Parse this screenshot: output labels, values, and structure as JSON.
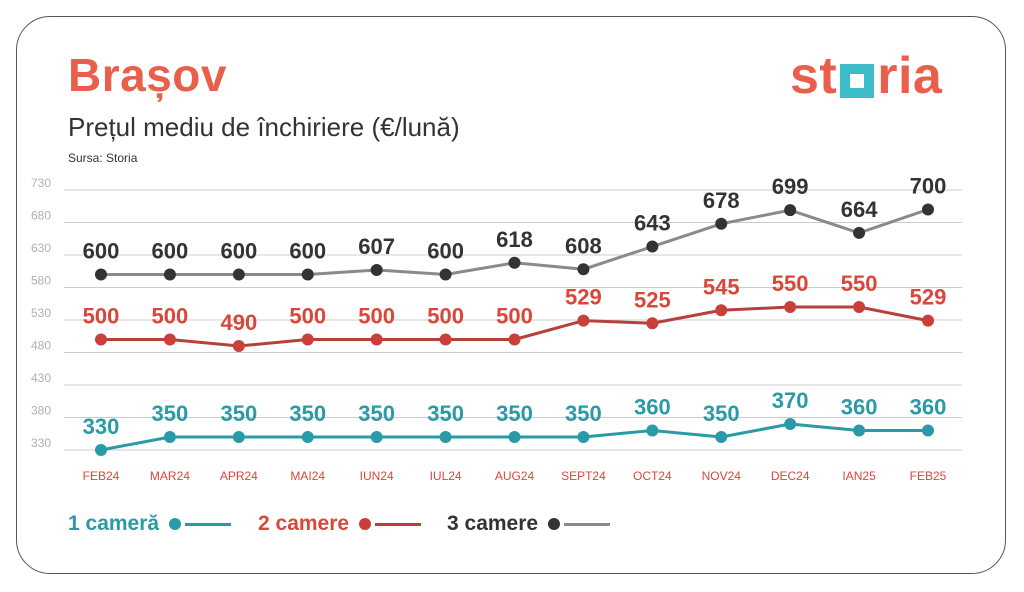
{
  "header": {
    "city": "Brașov",
    "subtitle": "Prețul mediu de închiriere (€/lună)",
    "source": "Sursa: Storia",
    "logo_left": "st",
    "logo_right": "ria"
  },
  "chart_data": {
    "type": "line",
    "categories": [
      "FEB24",
      "MAR24",
      "APR24",
      "MAI24",
      "IUN24",
      "IUL24",
      "AUG24",
      "SEPT24",
      "OCT24",
      "NOV24",
      "DEC24",
      "IAN25",
      "FEB25"
    ],
    "ylim": [
      330,
      730
    ],
    "yticks": [
      330,
      380,
      430,
      480,
      530,
      580,
      630,
      680,
      730
    ],
    "grid": true,
    "legend_position": "bottom-left",
    "series": [
      {
        "name": "1 cameră",
        "color": "#2a9aa6",
        "values": [
          330,
          350,
          350,
          350,
          350,
          350,
          350,
          350,
          360,
          350,
          370,
          360,
          360
        ]
      },
      {
        "name": "2 camere",
        "color": "#b7413a",
        "values": [
          500,
          500,
          490,
          500,
          500,
          500,
          500,
          529,
          525,
          545,
          550,
          550,
          529
        ]
      },
      {
        "name": "3 camere",
        "color": "#8a8a8a",
        "values": [
          600,
          600,
          600,
          600,
          607,
          600,
          618,
          608,
          643,
          678,
          699,
          664,
          700
        ]
      }
    ]
  },
  "colors": {
    "brand": "#e8604c",
    "brand_secondary": "#3bbcc8",
    "label_1": "#2a9aa6",
    "label_2": "#d9473b",
    "label_3": "#333333",
    "marker_3": "#333333",
    "marker_2": "#c9403a",
    "grid": "#cccccc",
    "tick": "#b0b0b0",
    "xlabel": "#d9473b"
  }
}
